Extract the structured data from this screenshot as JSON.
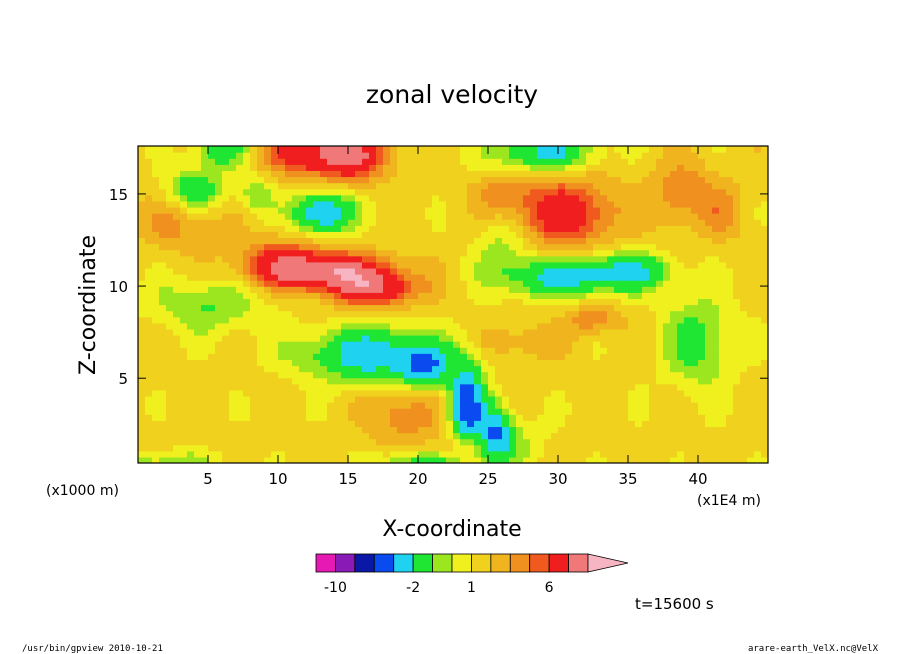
{
  "chart_data": {
    "type": "heatmap",
    "title": "zonal velocity",
    "xlabel": "X-coordinate",
    "ylabel": "Z-coordinate",
    "xunit_left": "(x1000 m)",
    "xunit_right": "(x1E4 m)",
    "xlim": [
      0,
      45
    ],
    "ylim": [
      0.4,
      17.6
    ],
    "xticks": [
      "5",
      "10",
      "15",
      "20",
      "25",
      "30",
      "35",
      "40"
    ],
    "yticks": [
      "5",
      "10",
      "15"
    ],
    "colorbar": {
      "levels": [
        -12,
        -10,
        -8,
        -6,
        -4,
        -2,
        -1,
        0,
        1,
        2,
        3,
        4,
        6,
        8,
        10
      ],
      "labels": [
        "-10",
        "-2",
        "1",
        "6"
      ],
      "colors": [
        "#e619b5",
        "#8a1ab5",
        "#0a18a8",
        "#0a4bf0",
        "#1ed2f0",
        "#1ee632",
        "#9be61e",
        "#f0f01e",
        "#f0d21e",
        "#f0b41e",
        "#f0901e",
        "#f05a1e",
        "#f01e1e",
        "#f07878",
        "#f7b4c3"
      ]
    },
    "annotation": "t=15600 s"
  },
  "footer": {
    "left": "/usr/bin/gpview   2010-10-21",
    "right": "arare-earth_VelX.nc@VelX"
  }
}
